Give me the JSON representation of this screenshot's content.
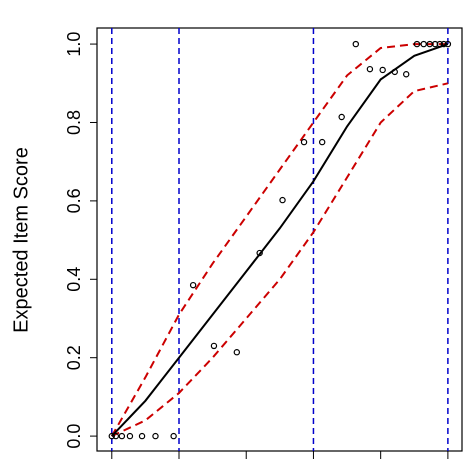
{
  "chart_data": {
    "type": "line",
    "y_label": "Expected Item Score",
    "xlim": [
      -0.22,
      5.21
    ],
    "ylim": [
      -0.038,
      1.041
    ],
    "xticks": [
      0,
      1,
      2,
      3,
      4,
      5
    ],
    "yticks": [
      {
        "value": 0,
        "label": "0.0"
      },
      0.2,
      0.4,
      0.6,
      0.8,
      {
        "value": 1,
        "label": "1.0"
      }
    ],
    "vlines": [
      0,
      1,
      3,
      5
    ],
    "vline_color": "#0000cc",
    "curve": {
      "color": "#000000",
      "x": [
        0,
        0.5,
        1,
        1.5,
        2,
        2.5,
        3,
        3.5,
        4,
        4.5,
        5
      ],
      "values": [
        0,
        0.09,
        0.2,
        0.31,
        0.42,
        0.53,
        0.65,
        0.79,
        0.91,
        0.97,
        1.0
      ]
    },
    "bands": {
      "color": "#cc0000",
      "upper": [
        0,
        0.15,
        0.31,
        0.44,
        0.56,
        0.68,
        0.8,
        0.92,
        0.99,
        1.0,
        1.0
      ],
      "lower": [
        0,
        0.04,
        0.11,
        0.2,
        0.3,
        0.4,
        0.52,
        0.66,
        0.8,
        0.88,
        0.9
      ]
    },
    "points": {
      "x": [
        0,
        0.06,
        0.15,
        0.27,
        0.45,
        0.65,
        0.92,
        1.21,
        1.52,
        1.86,
        2.2,
        2.54,
        2.86,
        3.13,
        3.42,
        3.63,
        3.84,
        4.03,
        4.21,
        4.38,
        4.54,
        4.64,
        4.73,
        4.81,
        4.88,
        4.94,
        5.0
      ],
      "values": [
        0,
        0,
        0,
        0,
        0,
        0,
        0,
        0.385,
        0.23,
        0.214,
        0.467,
        0.602,
        0.75,
        0.75,
        0.814,
        1.0,
        0.936,
        0.934,
        0.929,
        0.923,
        1.0,
        1.0,
        1.0,
        1.0,
        1.0,
        1.0,
        1.0
      ]
    }
  }
}
